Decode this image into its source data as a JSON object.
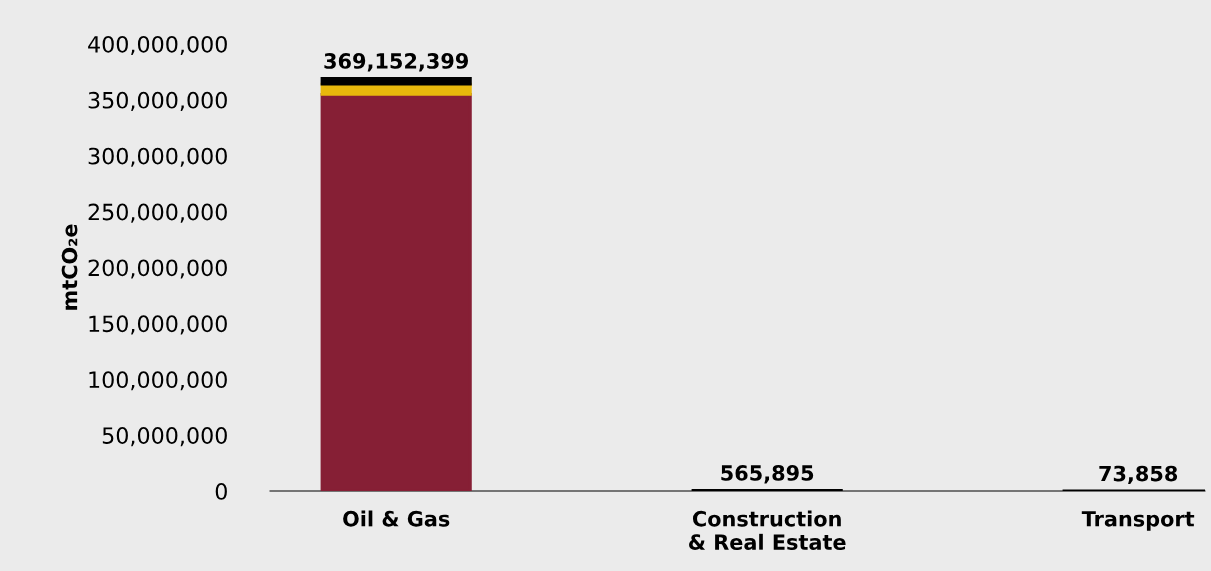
{
  "chart_data": {
    "type": "bar",
    "stacked": true,
    "ylabel": "mtCO₂e",
    "categories": [
      "Oil & Gas",
      "Construction\n& Real Estate",
      "Transport"
    ],
    "series": [
      {
        "color": "#861f35",
        "values": [
          355000000,
          null,
          null
        ]
      },
      {
        "color": "#e8b80c",
        "values": [
          9000000,
          null,
          null
        ]
      },
      {
        "color": "#000000",
        "values": [
          5152399,
          565895,
          73858
        ]
      }
    ],
    "totals": [
      "369,152,399",
      "565,895",
      "73,858"
    ],
    "ylim": [
      0,
      400000000
    ],
    "yticks": [
      {
        "value": 0,
        "label": "0"
      },
      {
        "value": 50000000,
        "label": "50,000,000"
      },
      {
        "value": 100000000,
        "label": "100,000,000"
      },
      {
        "value": 150000000,
        "label": "150,000,000"
      },
      {
        "value": 200000000,
        "label": "200,000,000"
      },
      {
        "value": 250000000,
        "label": "250,000,000"
      },
      {
        "value": 300000000,
        "label": "300,000,000"
      },
      {
        "value": 350000000,
        "label": "350,000,000"
      },
      {
        "value": 400000000,
        "label": "400,000,000"
      }
    ],
    "grid": false,
    "legend": false
  }
}
